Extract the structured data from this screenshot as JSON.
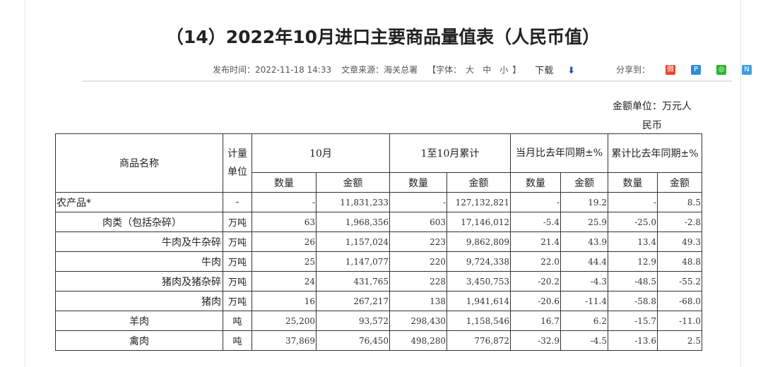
{
  "title": "（14）2022年10月进口主要商品量值表（人民币值）",
  "meta": {
    "publish": "发布时间：2022-11-18 14:33",
    "source": "文章来源：海关总署",
    "font_open": "【字体：",
    "font_large": "大",
    "font_medium": "中",
    "font_small": "小",
    "font_close": "】",
    "download": "下载",
    "share": "分享到："
  },
  "unit_line1": "金额单位：万元人",
  "unit_line2": "民币",
  "header": {
    "name": "商品名称",
    "unit": "计量单位",
    "month": "10月",
    "cumulative": "1至10月累计",
    "month_yoy": "当月比去年同期±%",
    "cum_yoy": "累计比去年同期±%",
    "qty": "数量",
    "amt": "金额"
  },
  "rows": [
    [
      "农产品*",
      "-",
      "-",
      "11,831,233",
      "-",
      "127,132,821",
      "-",
      "19.2",
      "-",
      "8.5"
    ],
    [
      "肉类（包括杂碎）",
      "万吨",
      "63",
      "1,968,356",
      "603",
      "17,146,012",
      "-5.4",
      "25.9",
      "-25.0",
      "-2.8"
    ],
    [
      "牛肉及牛杂碎",
      "万吨",
      "26",
      "1,157,024",
      "223",
      "9,862,809",
      "21.4",
      "43.9",
      "13.4",
      "49.3"
    ],
    [
      "牛肉",
      "万吨",
      "25",
      "1,147,077",
      "220",
      "9,724,338",
      "22.0",
      "44.4",
      "12.9",
      "48.8"
    ],
    [
      "猪肉及猪杂碎",
      "万吨",
      "24",
      "431,765",
      "228",
      "3,450,753",
      "-20.2",
      "-4.3",
      "-48.5",
      "-55.2"
    ],
    [
      "猪肉",
      "万吨",
      "16",
      "267,217",
      "138",
      "1,941,614",
      "-20.6",
      "-11.4",
      "-58.8",
      "-68.0"
    ],
    [
      "羊肉",
      "吨",
      "25,200",
      "93,572",
      "298,430",
      "1,158,546",
      "16.7",
      "6.2",
      "-15.7",
      "-11.0"
    ],
    [
      "禽肉",
      "吨",
      "37,869",
      "76,450",
      "498,280",
      "776,872",
      "-32.9",
      "-4.5",
      "-13.6",
      "2.5"
    ]
  ]
}
